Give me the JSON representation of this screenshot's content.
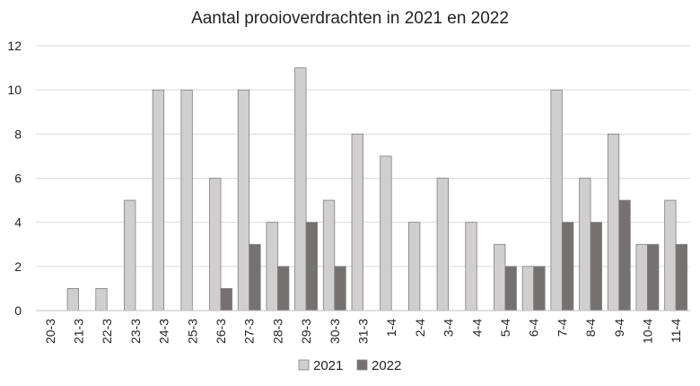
{
  "chart_data": {
    "type": "bar",
    "title": "Aantal prooioverdrachten in 2021 en 2022",
    "xlabel": "",
    "ylabel": "",
    "ylim": [
      0,
      12
    ],
    "yticks": [
      0,
      2,
      4,
      6,
      8,
      10,
      12
    ],
    "grid": true,
    "legend_position": "bottom",
    "categories": [
      "20-3",
      "21-3",
      "22-3",
      "23-3",
      "24-3",
      "25-3",
      "26-3",
      "27-3",
      "28-3",
      "29-3",
      "30-3",
      "31-3",
      "1-4",
      "2-4",
      "3-4",
      "4-4",
      "5-4",
      "6-4",
      "7-4",
      "8-4",
      "9-4",
      "10-4",
      "11-4"
    ],
    "series": [
      {
        "name": "2021",
        "color": "#d0cece",
        "values": [
          0,
          1,
          1,
          5,
          10,
          10,
          6,
          10,
          4,
          11,
          5,
          8,
          7,
          4,
          6,
          4,
          3,
          2,
          10,
          6,
          8,
          3,
          5
        ]
      },
      {
        "name": "2022",
        "color": "#767171",
        "values": [
          0,
          0,
          0,
          0,
          0,
          0,
          1,
          3,
          2,
          4,
          2,
          0,
          0,
          0,
          0,
          0,
          2,
          2,
          4,
          4,
          5,
          3,
          3
        ]
      }
    ]
  }
}
